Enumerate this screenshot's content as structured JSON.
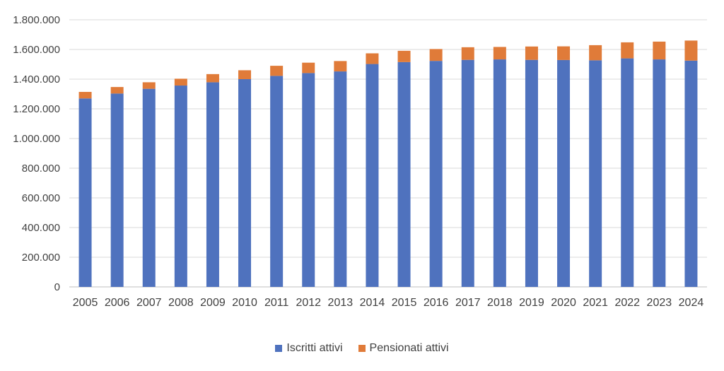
{
  "chart_data": {
    "type": "bar",
    "stacked": true,
    "categories": [
      "2005",
      "2006",
      "2007",
      "2008",
      "2009",
      "2010",
      "2011",
      "2012",
      "2013",
      "2014",
      "2015",
      "2016",
      "2017",
      "2018",
      "2019",
      "2020",
      "2021",
      "2022",
      "2023",
      "2024"
    ],
    "series": [
      {
        "name": "Iscritti attivi",
        "color": "#4F72BE",
        "values": [
          1270000,
          1303000,
          1335000,
          1357000,
          1379000,
          1400000,
          1422000,
          1441000,
          1452000,
          1502000,
          1515000,
          1523000,
          1530000,
          1533000,
          1530000,
          1529000,
          1527000,
          1540000,
          1533000,
          1525000
        ]
      },
      {
        "name": "Pensionati attivi",
        "color": "#E07B39",
        "values": [
          44000,
          44000,
          44000,
          46000,
          55000,
          60000,
          68000,
          70000,
          70000,
          72000,
          76000,
          80000,
          85000,
          84000,
          90000,
          92000,
          102000,
          108000,
          120000,
          135000
        ]
      }
    ],
    "yaxis": {
      "min": 0,
      "max": 1800000,
      "tick_labels": [
        "0",
        "200.000",
        "400.000",
        "600.000",
        "800.000",
        "1.000.000",
        "1.200.000",
        "1.400.000",
        "1.600.000",
        "1.800.000"
      ]
    },
    "grid": true,
    "legend_position": "bottom"
  }
}
